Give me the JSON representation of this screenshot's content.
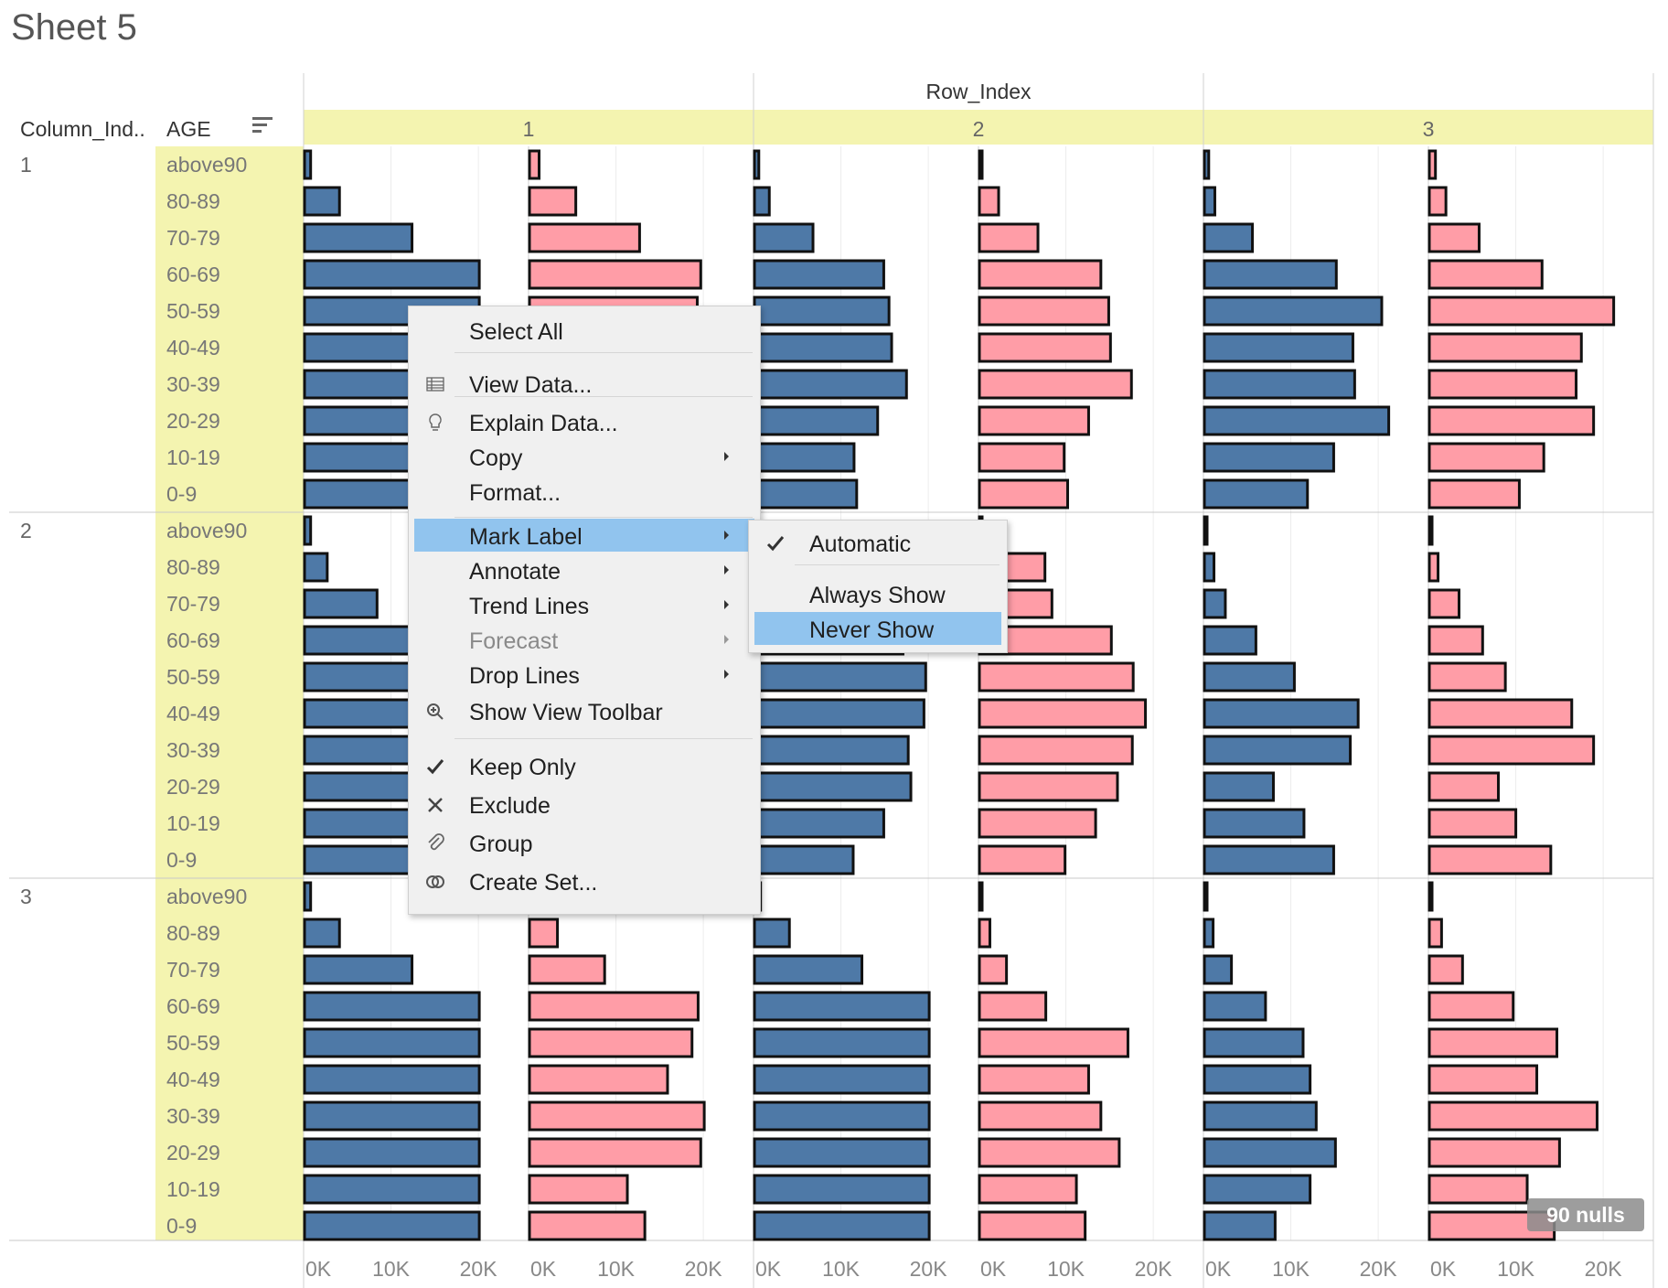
{
  "sheet": {
    "title": "Sheet 5",
    "nulls_badge": "90 nulls"
  },
  "headers": {
    "row_field": "Row_Index",
    "col_field_1": "Column_Ind..",
    "col_field_2": "AGE",
    "sort_icon": "sort-icon"
  },
  "colors": {
    "male": "#4e79a7",
    "female": "#ff9da7",
    "highlight_band": "#f4f4b0",
    "menu_highlight": "#91c4ee"
  },
  "chart_data": {
    "type": "bar",
    "orientation": "horizontal",
    "row_index": [
      "1",
      "2",
      "3"
    ],
    "column_index": [
      "1",
      "2",
      "3"
    ],
    "categories": [
      "above90",
      "80-89",
      "70-79",
      "60-69",
      "50-59",
      "40-49",
      "30-39",
      "20-29",
      "10-19",
      "0-9"
    ],
    "xlim": [
      0,
      22500
    ],
    "x_ticks": [
      "0K",
      "10K",
      "20K"
    ],
    "panels": [
      {
        "column": "1",
        "row": "1",
        "series": [
          {
            "values": [
              700,
              4000,
              12300,
              20000,
              20000,
              20000,
              20000,
              20000,
              20000,
              20000
            ]
          },
          {
            "values": [
              1100,
              5300,
              12600,
              19600,
              19200,
              19300,
              19300,
              19400,
              19400,
              19400
            ]
          }
        ]
      },
      {
        "column": "1",
        "row": "2",
        "series": [
          {
            "values": [
              500,
              1700,
              6700,
              14800,
              15400,
              15700,
              17400,
              14100,
              11400,
              11700
            ]
          },
          {
            "values": [
              300,
              2200,
              6700,
              13900,
              14800,
              15000,
              17400,
              12500,
              9700,
              10100
            ]
          }
        ]
      },
      {
        "column": "1",
        "row": "3",
        "series": [
          {
            "values": [
              500,
              1200,
              5500,
              15100,
              20300,
              17000,
              17200,
              21100,
              14800,
              11800
            ]
          },
          {
            "values": [
              700,
              1900,
              5700,
              12900,
              21100,
              17400,
              16800,
              18800,
              13100,
              10300
            ]
          }
        ]
      },
      {
        "column": "2",
        "row": "1",
        "series": [
          {
            "values": [
              700,
              2600,
              8300,
              20000,
              20000,
              20000,
              20000,
              20000,
              20000,
              20000
            ]
          },
          {
            "values": [
              500,
              2600,
              10000,
              20000,
              20000,
              20000,
              20000,
              20000,
              20000,
              20000
            ]
          }
        ]
      },
      {
        "column": "2",
        "row": "2",
        "series": [
          {
            "values": [
              500,
              2600,
              8300,
              17000,
              19600,
              19400,
              17600,
              17900,
              14800,
              11300
            ]
          },
          {
            "values": [
              300,
              7500,
              8300,
              15100,
              17600,
              19000,
              17500,
              15800,
              13300,
              9800
            ]
          }
        ]
      },
      {
        "column": "2",
        "row": "3",
        "series": [
          {
            "values": [
              300,
              1100,
              2400,
              5900,
              10300,
              17600,
              16700,
              7900,
              11400,
              14800
            ]
          },
          {
            "values": [
              300,
              1000,
              3400,
              6100,
              8700,
              16300,
              18800,
              7900,
              9900,
              13900
            ]
          }
        ]
      },
      {
        "column": "3",
        "row": "1",
        "series": [
          {
            "values": [
              700,
              4000,
              12300,
              20000,
              20000,
              20000,
              20000,
              20000,
              20000,
              20000
            ]
          },
          {
            "values": [
              1100,
              3200,
              8600,
              19300,
              18600,
              15800,
              20000,
              19600,
              11200,
              13200
            ]
          }
        ]
      },
      {
        "column": "3",
        "row": "2",
        "series": [
          {
            "values": [
              700,
              4000,
              12300,
              20000,
              20000,
              20000,
              20000,
              20000,
              20000,
              20000
            ]
          },
          {
            "values": [
              300,
              1200,
              3100,
              7600,
              17000,
              12500,
              13900,
              16000,
              11100,
              12100
            ]
          }
        ]
      },
      {
        "column": "3",
        "row": "3",
        "series": [
          {
            "values": [
              300,
              1000,
              3100,
              7000,
              11300,
              12100,
              12800,
              15000,
              12100,
              8100
            ]
          },
          {
            "values": [
              300,
              1400,
              3800,
              9600,
              14600,
              12300,
              19200,
              14900,
              11200,
              14300
            ]
          }
        ]
      }
    ]
  },
  "context_menu": {
    "items": [
      {
        "label": "Select All",
        "icon": ""
      },
      {
        "label": "View Data...",
        "icon": "table-icon"
      },
      {
        "label": "Explain Data...",
        "icon": "lightbulb-icon"
      },
      {
        "label": "Copy",
        "icon": "",
        "submenu": true
      },
      {
        "label": "Format...",
        "icon": ""
      },
      {
        "label": "Mark Label",
        "icon": "",
        "submenu": true,
        "highlighted": true
      },
      {
        "label": "Annotate",
        "icon": "",
        "submenu": true
      },
      {
        "label": "Trend Lines",
        "icon": "",
        "submenu": true
      },
      {
        "label": "Forecast",
        "icon": "",
        "submenu": true,
        "disabled": true
      },
      {
        "label": "Drop Lines",
        "icon": "",
        "submenu": true
      },
      {
        "label": "Show View Toolbar",
        "icon": "zoom-icon"
      },
      {
        "label": "Keep Only",
        "icon": "check-icon"
      },
      {
        "label": "Exclude",
        "icon": "x-icon"
      },
      {
        "label": "Group",
        "icon": "paperclip-icon"
      },
      {
        "label": "Create Set...",
        "icon": "venn-icon"
      }
    ]
  },
  "mark_label_submenu": {
    "items": [
      {
        "label": "Automatic",
        "checked": true
      },
      {
        "label": "Always Show"
      },
      {
        "label": "Never Show",
        "highlighted": true
      }
    ]
  }
}
